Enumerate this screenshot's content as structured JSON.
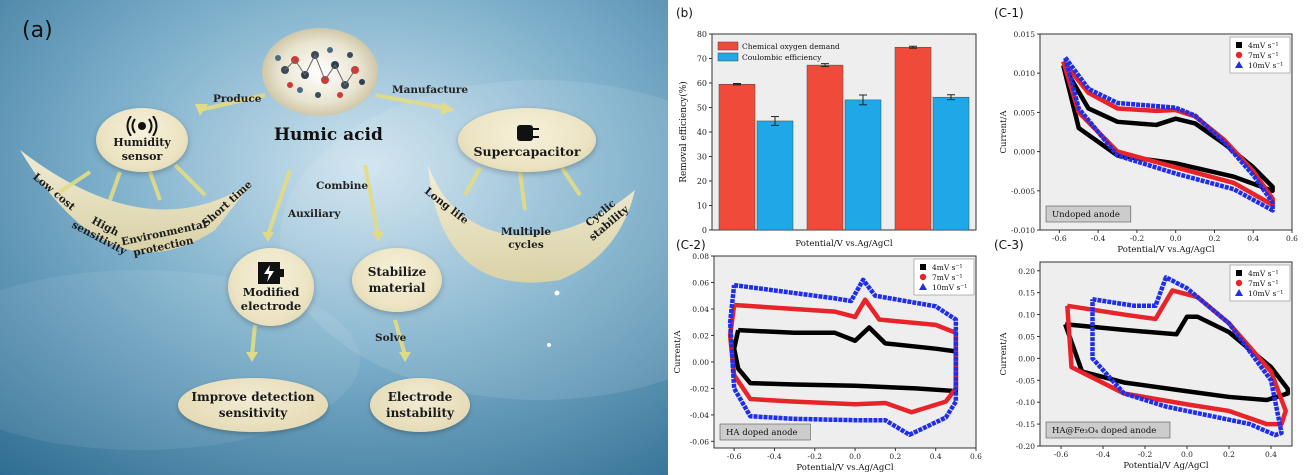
{
  "panel_a": {
    "label": "(a)",
    "center": "Humic acid",
    "edges": {
      "produce": "Produce",
      "manufacture": "Manufacture",
      "combine": "Combine",
      "auxiliary": "Auxiliary",
      "solve": "Solve"
    },
    "humidity_sensor": {
      "title": "Humidity sensor",
      "props": [
        "Low cost",
        "High sensitivity",
        "Environmental protection",
        "Short time"
      ]
    },
    "supercapacitor": {
      "title": "Supercapacitor",
      "props": [
        "Long life",
        "Multiple cycles",
        "Cyclic stability"
      ]
    },
    "modified_electrode": "Modified electrode",
    "stabilize_material": "Stabilize material",
    "improve_detection": "Improve detection sensitivity",
    "electrode_instability": "Electrode instability",
    "colors": {
      "arrow": "#e8e08a",
      "node": "#efe7c8"
    }
  },
  "chart_data": [
    {
      "id": "b",
      "panel_label": "(b)",
      "type": "bar",
      "categories": [
        "",
        "",
        ""
      ],
      "series": [
        {
          "name": "Chemical oxygen demand",
          "color": "#f04b3a",
          "values": [
            59.5,
            67.3,
            74.6
          ],
          "errors": [
            0.3,
            0.6,
            0.4
          ]
        },
        {
          "name": "Coulombic efficiency",
          "color": "#1fa8e8",
          "values": [
            44.5,
            53.1,
            54.2
          ],
          "errors": [
            1.8,
            2.0,
            1.0
          ]
        }
      ],
      "xlabel": "Potential/V vs.Ag/AgCl",
      "ylabel": "Removal efficiency(%)",
      "ylim": [
        0,
        80
      ],
      "yticks": [
        "0",
        "10",
        "20",
        "30",
        "40",
        "50",
        "60",
        "70",
        "80"
      ],
      "legend": "top-left"
    },
    {
      "id": "c1",
      "panel_label": "(C-1)",
      "type": "line",
      "annotation": "Undoped anode",
      "xlabel": "Potential/V vs.Ag/AgCl",
      "ylabel": "Current/A",
      "xlim": [
        -0.7,
        0.6
      ],
      "ylim": [
        -0.01,
        0.015
      ],
      "xticks": [
        "-0.6",
        "-0.4",
        "-0.2",
        "0.0",
        "0.2",
        "0.4",
        "0.6"
      ],
      "yticks": [
        "-0.010",
        "-0.005",
        "0.000",
        "0.005",
        "0.010",
        "0.015"
      ],
      "legend": "top-right",
      "series": [
        {
          "name": "4mV s⁻¹",
          "marker": "square",
          "color": "#000000",
          "loop": [
            [
              -0.58,
              0.011
            ],
            [
              -0.45,
              0.0055
            ],
            [
              -0.3,
              0.0038
            ],
            [
              -0.1,
              0.0034
            ],
            [
              0.0,
              0.0042
            ],
            [
              0.1,
              0.0036
            ],
            [
              0.25,
              0.001
            ],
            [
              0.4,
              -0.002
            ],
            [
              0.5,
              -0.0045
            ],
            [
              0.5,
              -0.005
            ],
            [
              0.3,
              -0.0032
            ],
            [
              0.0,
              -0.0015
            ],
            [
              -0.3,
              -0.0005
            ],
            [
              -0.5,
              0.003
            ],
            [
              -0.58,
              0.011
            ]
          ]
        },
        {
          "name": "7mV s⁻¹",
          "marker": "circle",
          "color": "#e8232a",
          "loop": [
            [
              -0.58,
              0.0115
            ],
            [
              -0.45,
              0.0075
            ],
            [
              -0.3,
              0.0055
            ],
            [
              -0.1,
              0.0052
            ],
            [
              0.0,
              0.0053
            ],
            [
              0.1,
              0.0045
            ],
            [
              0.25,
              0.0015
            ],
            [
              0.4,
              -0.0025
            ],
            [
              0.5,
              -0.006
            ],
            [
              0.5,
              -0.0068
            ],
            [
              0.3,
              -0.004
            ],
            [
              0.0,
              -0.002
            ],
            [
              -0.3,
              0.0
            ],
            [
              -0.5,
              0.005
            ],
            [
              -0.58,
              0.0115
            ]
          ]
        },
        {
          "name": "10mV s⁻¹",
          "marker": "triangle",
          "color": "#1f2ee8",
          "loop": [
            [
              -0.57,
              0.012
            ],
            [
              -0.45,
              0.008
            ],
            [
              -0.3,
              0.0062
            ],
            [
              -0.1,
              0.0058
            ],
            [
              0.0,
              0.0056
            ],
            [
              0.1,
              0.0046
            ],
            [
              0.25,
              0.0012
            ],
            [
              0.4,
              -0.003
            ],
            [
              0.5,
              -0.0065
            ],
            [
              0.5,
              -0.0075
            ],
            [
              0.3,
              -0.0048
            ],
            [
              0.0,
              -0.0028
            ],
            [
              -0.3,
              -0.0005
            ],
            [
              -0.5,
              0.0055
            ],
            [
              -0.57,
              0.012
            ]
          ]
        }
      ]
    },
    {
      "id": "c2",
      "panel_label": "(C-2)",
      "type": "line",
      "annotation": "HA doped anode",
      "xlabel": "Potential/V vs.Ag/AgCl",
      "ylabel": "Current/A",
      "xlim": [
        -0.7,
        0.6
      ],
      "ylim": [
        -0.065,
        0.08
      ],
      "xticks": [
        "-0.6",
        "-0.4",
        "-0.2",
        "0.0",
        "0.2",
        "0.4",
        "0.6"
      ],
      "yticks": [
        "-0.06",
        "-0.04",
        "-0.02",
        "0.00",
        "0.02",
        "0.04",
        "0.06",
        "0.08"
      ],
      "legend": "top-right",
      "series": [
        {
          "name": "4mV s⁻¹",
          "marker": "square",
          "color": "#000000",
          "loop": [
            [
              -0.58,
              0.024
            ],
            [
              -0.3,
              0.022
            ],
            [
              -0.1,
              0.022
            ],
            [
              0.0,
              0.016
            ],
            [
              0.07,
              0.026
            ],
            [
              0.15,
              0.014
            ],
            [
              0.4,
              0.01
            ],
            [
              0.5,
              0.008
            ],
            [
              0.5,
              -0.015
            ],
            [
              0.5,
              -0.022
            ],
            [
              0.3,
              -0.02
            ],
            [
              0.0,
              -0.018
            ],
            [
              -0.3,
              -0.017
            ],
            [
              -0.52,
              -0.016
            ],
            [
              -0.58,
              -0.005
            ],
            [
              -0.6,
              0.01
            ],
            [
              -0.58,
              0.024
            ]
          ]
        },
        {
          "name": "7mV s⁻¹",
          "marker": "circle",
          "color": "#e8232a",
          "loop": [
            [
              -0.6,
              0.043
            ],
            [
              -0.3,
              0.04
            ],
            [
              -0.1,
              0.038
            ],
            [
              0.0,
              0.034
            ],
            [
              0.05,
              0.047
            ],
            [
              0.12,
              0.032
            ],
            [
              0.4,
              0.028
            ],
            [
              0.5,
              0.022
            ],
            [
              0.5,
              -0.02
            ],
            [
              0.45,
              -0.03
            ],
            [
              0.28,
              -0.038
            ],
            [
              0.15,
              -0.031
            ],
            [
              0.0,
              -0.032
            ],
            [
              -0.3,
              -0.03
            ],
            [
              -0.52,
              -0.028
            ],
            [
              -0.6,
              -0.01
            ],
            [
              -0.62,
              0.02
            ],
            [
              -0.6,
              0.043
            ]
          ]
        },
        {
          "name": "10mV s⁻¹",
          "marker": "triangle",
          "color": "#1f2ee8",
          "loop": [
            [
              -0.6,
              0.058
            ],
            [
              -0.3,
              0.052
            ],
            [
              -0.1,
              0.048
            ],
            [
              -0.02,
              0.046
            ],
            [
              0.04,
              0.062
            ],
            [
              0.1,
              0.05
            ],
            [
              0.4,
              0.042
            ],
            [
              0.5,
              0.032
            ],
            [
              0.5,
              -0.03
            ],
            [
              0.45,
              -0.042
            ],
            [
              0.27,
              -0.055
            ],
            [
              0.15,
              -0.044
            ],
            [
              0.0,
              -0.044
            ],
            [
              -0.3,
              -0.043
            ],
            [
              -0.52,
              -0.041
            ],
            [
              -0.6,
              -0.02
            ],
            [
              -0.62,
              0.03
            ],
            [
              -0.6,
              0.058
            ]
          ]
        }
      ]
    },
    {
      "id": "c3",
      "panel_label": "(C-3)",
      "type": "line",
      "annotation": "HA@Fe₃O₄ doped anode",
      "xlabel": "Potential/V Ag/AgCl",
      "ylabel": "Current/A",
      "xlim": [
        -0.7,
        0.5
      ],
      "ylim": [
        -0.2,
        0.22
      ],
      "xticks": [
        "-0.6",
        "-0.4",
        "-0.2",
        "0.0",
        "0.2",
        "0.4"
      ],
      "yticks": [
        "-0.20",
        "-0.15",
        "-0.10",
        "-0.05",
        "0.00",
        "0.05",
        "0.10",
        "0.15",
        "0.20"
      ],
      "legend": "top-right",
      "series": [
        {
          "name": "4mV s⁻¹",
          "marker": "square",
          "color": "#000000",
          "loop": [
            [
              -0.58,
              0.078
            ],
            [
              -0.3,
              0.065
            ],
            [
              -0.05,
              0.055
            ],
            [
              0.0,
              0.095
            ],
            [
              0.05,
              0.095
            ],
            [
              0.2,
              0.06
            ],
            [
              0.4,
              -0.02
            ],
            [
              0.48,
              -0.07
            ],
            [
              0.48,
              -0.08
            ],
            [
              0.38,
              -0.095
            ],
            [
              0.2,
              -0.088
            ],
            [
              0.0,
              -0.075
            ],
            [
              -0.3,
              -0.055
            ],
            [
              -0.5,
              -0.03
            ],
            [
              -0.58,
              0.078
            ]
          ]
        },
        {
          "name": "7mV s⁻¹",
          "marker": "circle",
          "color": "#e8232a",
          "loop": [
            [
              -0.57,
              0.12
            ],
            [
              -0.3,
              0.1
            ],
            [
              -0.15,
              0.09
            ],
            [
              -0.07,
              0.155
            ],
            [
              0.05,
              0.14
            ],
            [
              0.2,
              0.08
            ],
            [
              0.4,
              -0.03
            ],
            [
              0.47,
              -0.12
            ],
            [
              0.45,
              -0.15
            ],
            [
              0.38,
              -0.15
            ],
            [
              0.2,
              -0.12
            ],
            [
              0.0,
              -0.105
            ],
            [
              -0.3,
              -0.08
            ],
            [
              -0.55,
              -0.02
            ],
            [
              -0.57,
              0.12
            ]
          ]
        },
        {
          "name": "10mV s⁻¹",
          "marker": "triangle",
          "color": "#1f2ee8",
          "loop": [
            [
              -0.45,
              0.135
            ],
            [
              -0.25,
              0.12
            ],
            [
              -0.15,
              0.12
            ],
            [
              -0.1,
              0.185
            ],
            [
              0.0,
              0.16
            ],
            [
              0.2,
              0.08
            ],
            [
              0.4,
              -0.05
            ],
            [
              0.45,
              -0.17
            ],
            [
              0.42,
              -0.175
            ],
            [
              0.3,
              -0.15
            ],
            [
              0.1,
              -0.13
            ],
            [
              -0.1,
              -0.11
            ],
            [
              -0.3,
              -0.08
            ],
            [
              -0.45,
              0.0
            ],
            [
              -0.45,
              0.135
            ]
          ]
        }
      ]
    }
  ]
}
